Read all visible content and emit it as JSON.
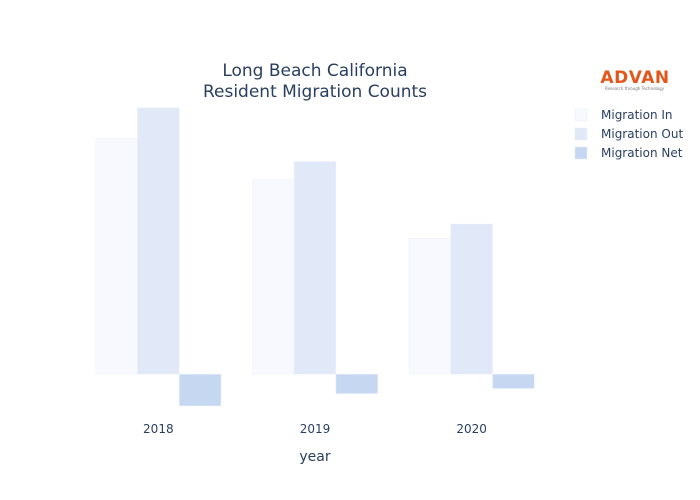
{
  "logo": {
    "text": "ADVAN",
    "tagline": "Research through Technology"
  },
  "chart_data": {
    "type": "bar",
    "title_lines": [
      "Long Beach California",
      "Resident Migration Counts"
    ],
    "xlabel": "year",
    "ylabel": "",
    "categories": [
      "2018",
      "2019",
      "2020"
    ],
    "series": [
      {
        "name": "Migration In",
        "values": [
          46000,
          38000,
          26500
        ],
        "color": "#f8f9fe"
      },
      {
        "name": "Migration Out",
        "values": [
          52000,
          41500,
          29300
        ],
        "color": "#e1e9f8"
      },
      {
        "name": "Migration Net",
        "values": [
          -6200,
          -3800,
          -2800
        ],
        "color": "#c6d8f1"
      }
    ],
    "ylim": [
      -7000,
      53500
    ],
    "grid": false,
    "legend_position": "right",
    "show_y_axis": false
  }
}
